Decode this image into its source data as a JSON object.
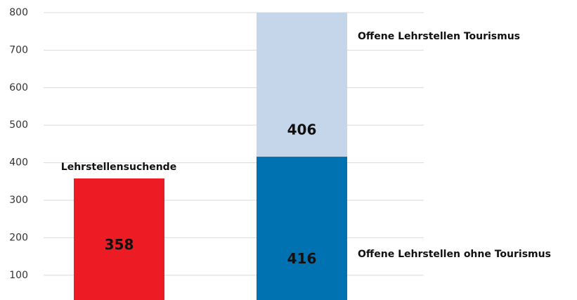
{
  "chart_data": {
    "type": "bar",
    "stacked": true,
    "categories": [
      null,
      null
    ],
    "series": [
      {
        "name": "Lehrstellensuchende",
        "color": "#ed1c24",
        "values": [
          358,
          null
        ]
      },
      {
        "name": "Offene Lehrstellen ohne Tourismus",
        "color": "#0071b1",
        "values": [
          null,
          416
        ]
      },
      {
        "name": "Offene Lehrstellen Tourismus",
        "color": "#c6d6ea",
        "values": [
          null,
          406
        ]
      }
    ],
    "ylim": [
      34,
      800
    ],
    "yticks": [
      100,
      200,
      300,
      400,
      500,
      600,
      700,
      800
    ],
    "grid": true
  }
}
